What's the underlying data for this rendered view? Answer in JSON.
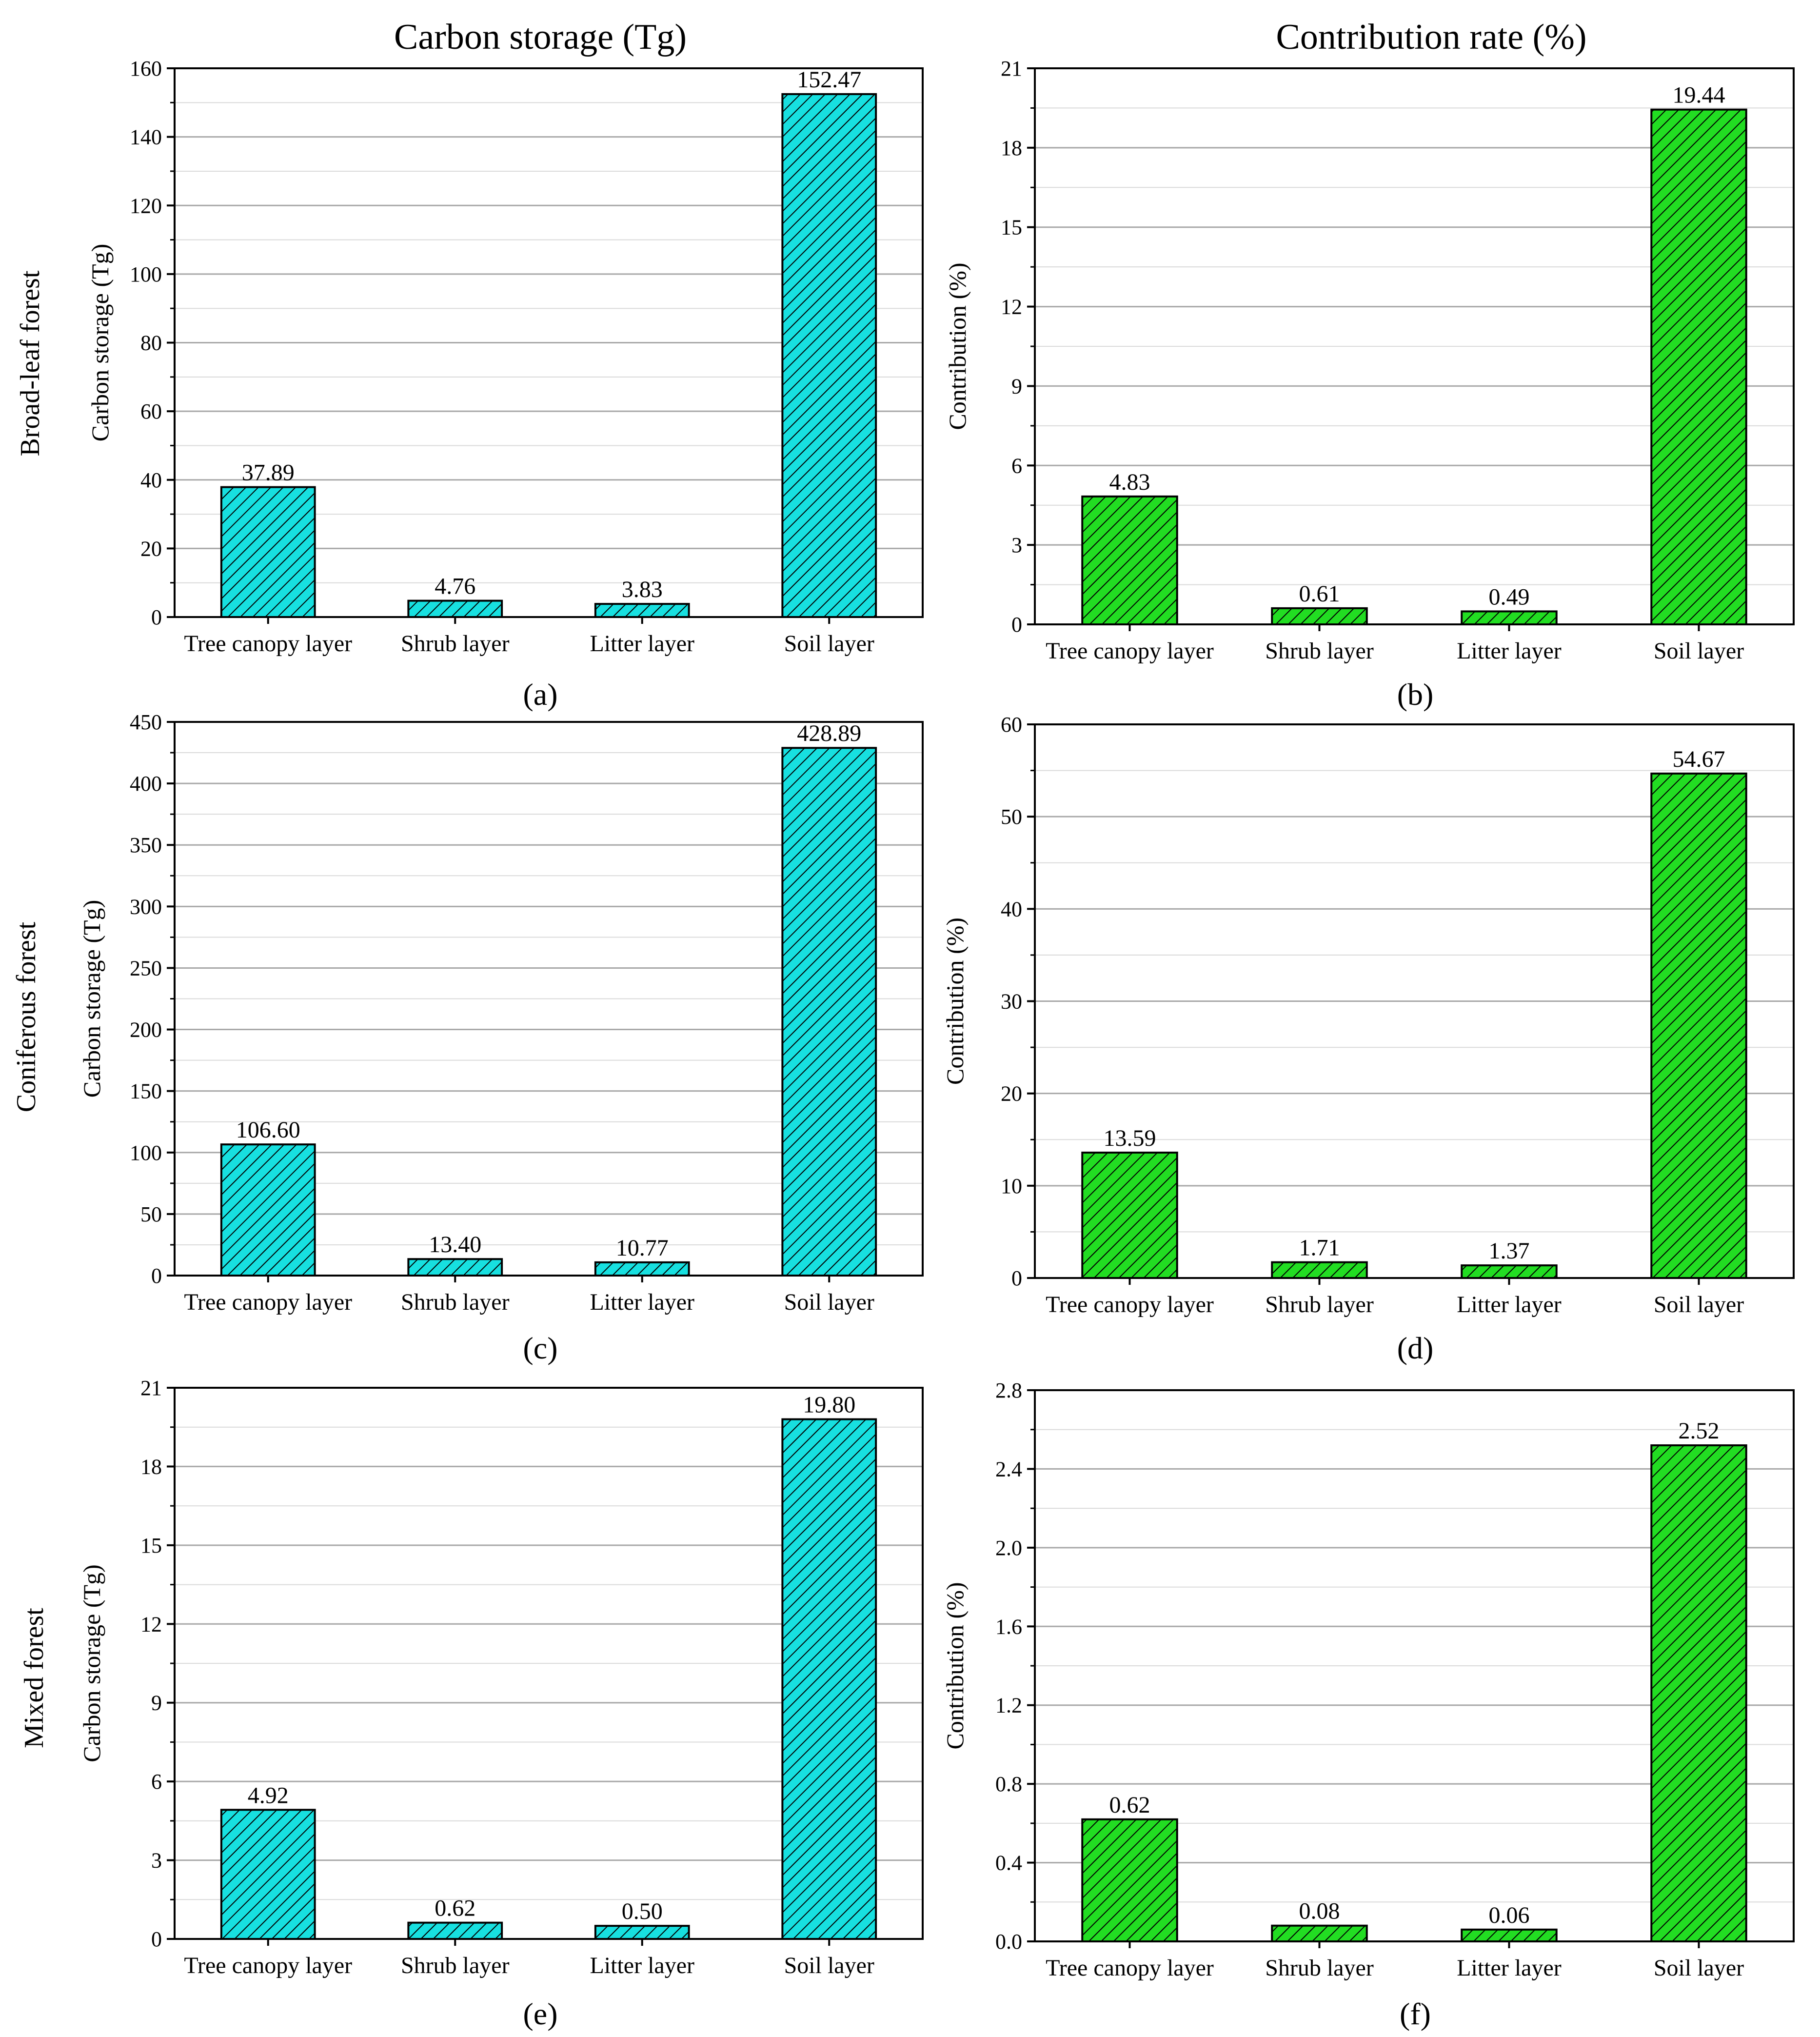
{
  "column_titles": [
    "Carbon storage (Tg)",
    "Contribution rate (%)"
  ],
  "row_labels": [
    "Broad-leaf forest",
    "Coniferous forest",
    "Mixed forest"
  ],
  "colors": {
    "storage_fill": "#17e0e0",
    "contribution_fill": "#22dd22",
    "outline": "#000000",
    "grid": "#a8a8a8"
  },
  "chart_data": [
    {
      "type": "bar",
      "panel": "(a)",
      "forest": "Broad-leaf forest",
      "ylabel": "Carbon storage (Tg)",
      "categories": [
        "Tree canopy layer",
        "Shrub layer",
        "Litter layer",
        "Soil layer"
      ],
      "values": [
        37.89,
        4.76,
        3.83,
        152.47
      ],
      "labels": [
        "37.89",
        "4.76",
        "3.83",
        "152.47"
      ],
      "ylim": [
        0,
        160
      ],
      "yticks": [
        0,
        20,
        40,
        60,
        80,
        100,
        120,
        140,
        160
      ],
      "ytick_labels": [
        "0",
        "20",
        "40",
        "60",
        "80",
        "100",
        "120",
        "140",
        "160"
      ],
      "fill": "storage"
    },
    {
      "type": "bar",
      "panel": "(b)",
      "forest": "Broad-leaf forest",
      "ylabel": "Contribution (%)",
      "categories": [
        "Tree canopy layer",
        "Shrub layer",
        "Litter layer",
        "Soil layer"
      ],
      "values": [
        4.83,
        0.61,
        0.49,
        19.44
      ],
      "labels": [
        "4.83",
        "0.61",
        "0.49",
        "19.44"
      ],
      "ylim": [
        0,
        21
      ],
      "yticks": [
        0,
        3,
        6,
        9,
        12,
        15,
        18,
        21
      ],
      "ytick_labels": [
        "0",
        "3",
        "6",
        "9",
        "12",
        "15",
        "18",
        "21"
      ],
      "fill": "contribution"
    },
    {
      "type": "bar",
      "panel": "(c)",
      "forest": "Coniferous forest",
      "ylabel": "Carbon storage (Tg)",
      "categories": [
        "Tree canopy layer",
        "Shrub layer",
        "Litter layer",
        "Soil layer"
      ],
      "values": [
        106.6,
        13.4,
        10.77,
        428.89
      ],
      "labels": [
        "106.60",
        "13.40",
        "10.77",
        "428.89"
      ],
      "ylim": [
        0,
        450
      ],
      "yticks": [
        0,
        50,
        100,
        150,
        200,
        250,
        300,
        350,
        400,
        450
      ],
      "ytick_labels": [
        "0",
        "50",
        "100",
        "150",
        "200",
        "250",
        "300",
        "350",
        "400",
        "450"
      ],
      "fill": "storage"
    },
    {
      "type": "bar",
      "panel": "(d)",
      "forest": "Coniferous forest",
      "ylabel": "Contribution (%)",
      "categories": [
        "Tree canopy layer",
        "Shrub layer",
        "Litter layer",
        "Soil layer"
      ],
      "values": [
        13.59,
        1.71,
        1.37,
        54.67
      ],
      "labels": [
        "13.59",
        "1.71",
        "1.37",
        "54.67"
      ],
      "ylim": [
        0,
        60
      ],
      "yticks": [
        0,
        10,
        20,
        30,
        40,
        50,
        60
      ],
      "ytick_labels": [
        "0",
        "10",
        "20",
        "30",
        "40",
        "50",
        "60"
      ],
      "fill": "contribution"
    },
    {
      "type": "bar",
      "panel": "(e)",
      "forest": "Mixed forest",
      "ylabel": "Carbon storage (Tg)",
      "categories": [
        "Tree canopy layer",
        "Shrub layer",
        "Litter layer",
        "Soil layer"
      ],
      "values": [
        4.92,
        0.62,
        0.5,
        19.8
      ],
      "labels": [
        "4.92",
        "0.62",
        "0.50",
        "19.80"
      ],
      "ylim": [
        0,
        21
      ],
      "yticks": [
        0,
        3,
        6,
        9,
        12,
        15,
        18,
        21
      ],
      "ytick_labels": [
        "0",
        "3",
        "6",
        "9",
        "12",
        "15",
        "18",
        "21"
      ],
      "fill": "storage"
    },
    {
      "type": "bar",
      "panel": "(f)",
      "forest": "Mixed forest",
      "ylabel": "Contribution (%)",
      "categories": [
        "Tree canopy layer",
        "Shrub layer",
        "Litter layer",
        "Soil layer"
      ],
      "values": [
        0.62,
        0.08,
        0.06,
        2.52
      ],
      "labels": [
        "0.62",
        "0.08",
        "0.06",
        "2.52"
      ],
      "ylim": [
        0,
        2.8
      ],
      "yticks": [
        0,
        0.4,
        0.8,
        1.2,
        1.6,
        2.0,
        2.4,
        2.8
      ],
      "ytick_labels": [
        "0.0",
        "0.4",
        "0.8",
        "1.2",
        "1.6",
        "2.0",
        "2.4",
        "2.8"
      ],
      "fill": "contribution"
    }
  ]
}
